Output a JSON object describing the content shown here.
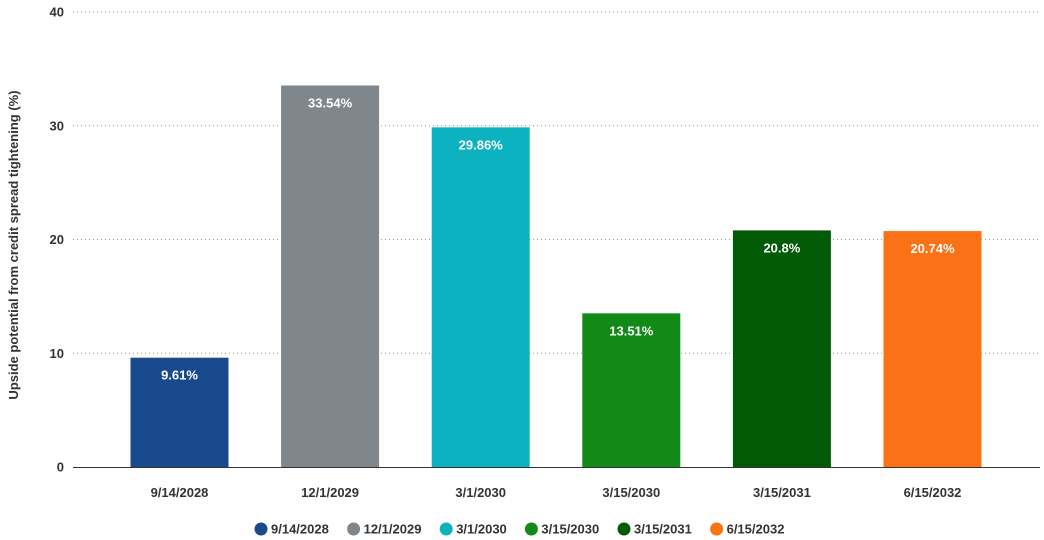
{
  "chart_data": {
    "type": "bar",
    "title": "",
    "xlabel": "",
    "ylabel": "Upside potential from credit spread tightening (%)",
    "ylim": [
      0,
      40
    ],
    "yticks": [
      0,
      10,
      20,
      30,
      40
    ],
    "grid": true,
    "legend_position": "bottom",
    "categories": [
      "9/14/2028",
      "12/1/2029",
      "3/1/2030",
      "3/15/2030",
      "3/15/2031",
      "6/15/2032"
    ],
    "values": [
      9.61,
      33.54,
      29.86,
      13.51,
      20.8,
      20.74
    ],
    "data_labels": [
      "9.61%",
      "33.54%",
      "29.86%",
      "13.51%",
      "20.8%",
      "20.74%"
    ],
    "colors": [
      "#1a4a8e",
      "#7f878c",
      "#0db2c0",
      "#128a18",
      "#015a05",
      "#fb7115"
    ],
    "legend": [
      "9/14/2028",
      "12/1/2029",
      "3/1/2030",
      "3/15/2030",
      "3/15/2031",
      "6/15/2032"
    ]
  }
}
